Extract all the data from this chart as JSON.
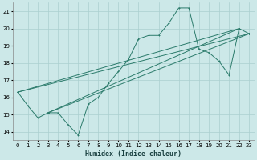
{
  "xlabel": "Humidex (Indice chaleur)",
  "xlim": [
    -0.5,
    23.5
  ],
  "ylim": [
    13.5,
    21.5
  ],
  "xticks": [
    0,
    1,
    2,
    3,
    4,
    5,
    6,
    7,
    8,
    9,
    10,
    11,
    12,
    13,
    14,
    15,
    16,
    17,
    18,
    19,
    20,
    21,
    22,
    23
  ],
  "yticks": [
    14,
    15,
    16,
    17,
    18,
    19,
    20,
    21
  ],
  "bg_color": "#cce8e8",
  "grid_color": "#aacfcf",
  "line_color": "#2a7a6a",
  "line1_x": [
    0,
    1,
    2,
    3,
    4,
    5,
    6,
    7,
    8,
    9,
    10,
    11,
    12,
    13,
    14,
    15,
    16,
    17,
    18,
    19,
    20,
    21,
    22,
    23
  ],
  "line1_y": [
    16.3,
    15.5,
    14.8,
    15.1,
    15.1,
    14.4,
    13.8,
    15.6,
    16.0,
    16.8,
    17.5,
    18.2,
    19.4,
    19.6,
    19.6,
    20.3,
    21.2,
    21.2,
    18.8,
    18.6,
    18.1,
    17.3,
    20.0,
    19.7
  ],
  "line2_x": [
    0,
    22
  ],
  "line2_y": [
    16.3,
    20.0
  ],
  "line3_x": [
    3,
    22
  ],
  "line3_y": [
    15.1,
    20.0
  ],
  "line4_x": [
    3,
    23
  ],
  "line4_y": [
    15.1,
    19.7
  ],
  "line5_x": [
    0,
    23
  ],
  "line5_y": [
    16.3,
    19.7
  ],
  "figsize": [
    3.2,
    2.0
  ],
  "dpi": 100,
  "tick_fontsize": 5.0,
  "xlabel_fontsize": 6.0
}
